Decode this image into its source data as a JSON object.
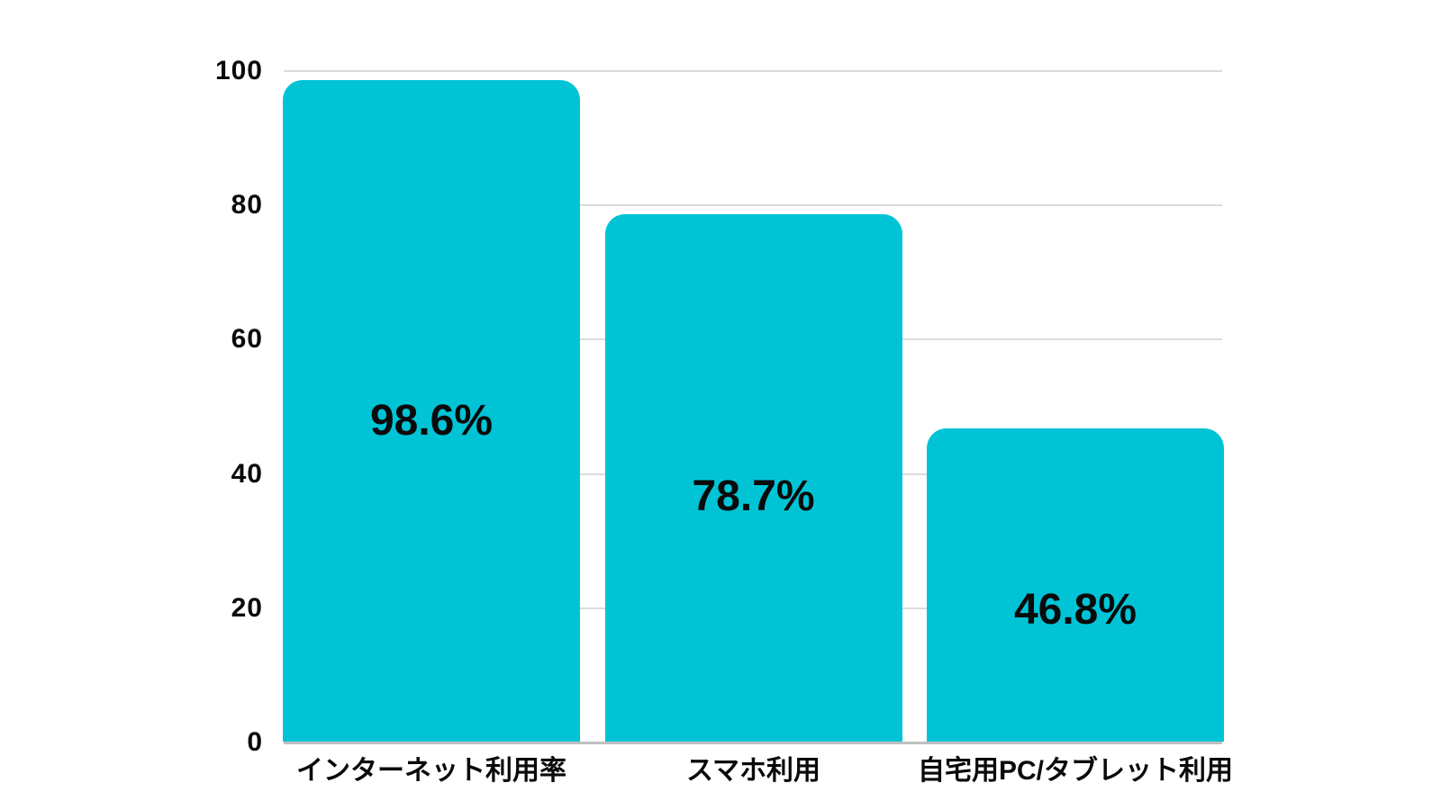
{
  "chart_data": {
    "type": "bar",
    "categories": [
      "インターネット利用率",
      "スマホ利用",
      "自宅用PC/タブレット利用"
    ],
    "values": [
      98.6,
      78.7,
      46.8
    ],
    "data_labels": [
      "98.6%",
      "78.7%",
      "46.8%"
    ],
    "title": "",
    "xlabel": "",
    "ylabel": "",
    "ylim": [
      0,
      100
    ],
    "yticks": [
      0,
      20,
      40,
      60,
      80,
      100
    ],
    "grid": true,
    "legend": false,
    "colors": {
      "bar": "#00C4D6",
      "gridline": "#DCDCDC",
      "baseline": "#C0C0C0",
      "text": "#0A0A0A",
      "background": "#FFFFFF"
    },
    "label_value_positions": [
      47.9,
      36.6,
      19.7
    ]
  }
}
